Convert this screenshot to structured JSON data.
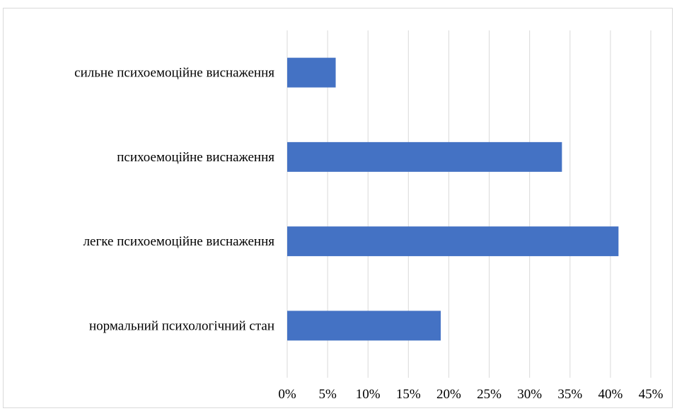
{
  "chart_data": {
    "type": "bar",
    "orientation": "horizontal",
    "categories": [
      "сильне психоемоційне виснаження",
      "психоемоційне виснаження",
      "легке психоемоційне виснаження",
      "нормальний психологічний стан"
    ],
    "values": [
      6,
      34,
      41,
      19
    ],
    "unit": "%",
    "xlim": [
      0,
      45
    ],
    "x_ticks": [
      "0%",
      "5%",
      "10%",
      "15%",
      "20%",
      "25%",
      "30%",
      "35%",
      "40%",
      "45%"
    ],
    "grid": true,
    "legend": "none",
    "title": "",
    "xlabel": "",
    "ylabel": "",
    "bar_color": "#4472c4",
    "grid_color": "#d9d9d9"
  }
}
